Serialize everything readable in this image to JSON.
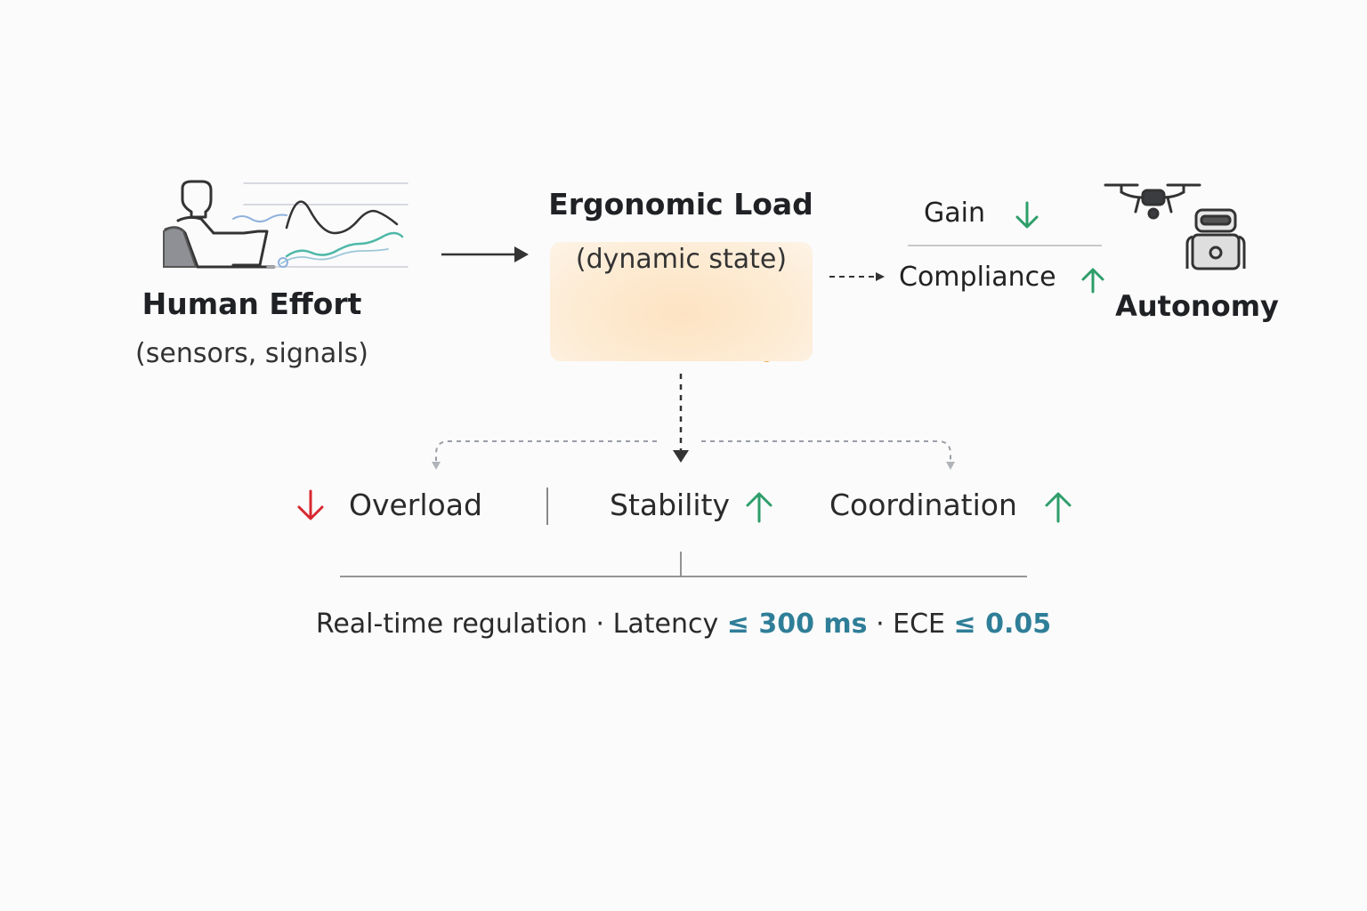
{
  "human": {
    "title": "Human Effort",
    "subtitle": "(sensors, signals)",
    "icon": "person-at-laptop-icon"
  },
  "ergonomic": {
    "title": "Ergonomic Load",
    "subtitle": "(dynamic state)"
  },
  "control": {
    "gain": {
      "label": "Gain",
      "trend": "down"
    },
    "compliance": {
      "label": "Compliance",
      "trend": "up"
    }
  },
  "autonomy": {
    "label": "Autonomy",
    "icons": [
      "drone-icon",
      "robot-icon"
    ]
  },
  "outcomes": {
    "overload": {
      "label": "Overload",
      "trend": "down"
    },
    "stability": {
      "label": "Stability",
      "trend": "up"
    },
    "coordination": {
      "label": "Coordination",
      "trend": "up"
    }
  },
  "footer": {
    "prefix": "Real-time regulation · Latency ",
    "latency_op": "≤ ",
    "latency_value": "300 ms",
    "middle": " · ECE ",
    "ece_op": "≤ ",
    "ece_value": "0.05"
  },
  "colors": {
    "up": "#2e9e6a",
    "down": "#d8282f",
    "accent_orange": "#f08a1c",
    "highlight": "#2f7e98"
  }
}
